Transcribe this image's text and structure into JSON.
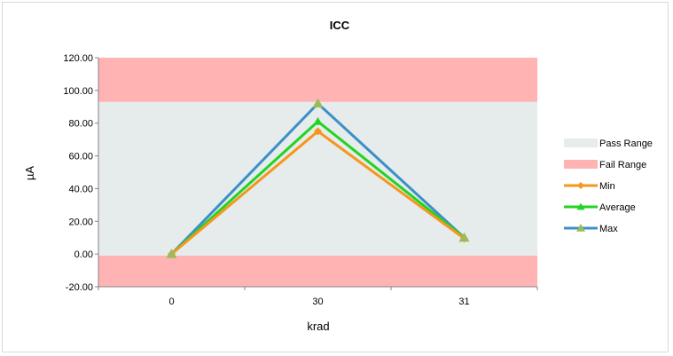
{
  "chart_data": {
    "type": "line",
    "title": "ICC",
    "xlabel": "krad",
    "ylabel": "µA",
    "categories": [
      "0",
      "30",
      "31"
    ],
    "ylim": [
      -20,
      120
    ],
    "yticks": [
      -20,
      0,
      20,
      40,
      60,
      80,
      100,
      120
    ],
    "ytick_labels": [
      "-20.00",
      "0.00",
      "20.00",
      "40.00",
      "60.00",
      "80.00",
      "100.00",
      "120.00"
    ],
    "bands": [
      {
        "name": "Pass Range",
        "from": -1,
        "to": 93,
        "color": "#e6ebeb"
      },
      {
        "name": "Fail Range",
        "color": "#ffb3b3",
        "regions": [
          [
            93,
            120
          ],
          [
            -20,
            -1
          ]
        ]
      }
    ],
    "series": [
      {
        "name": "Max",
        "values": [
          0,
          92,
          10
        ],
        "color": "#3c8fc8",
        "marker": "triangle"
      },
      {
        "name": "Average",
        "values": [
          0,
          81,
          10
        ],
        "color": "#22d422",
        "marker": "triangle"
      },
      {
        "name": "Min",
        "values": [
          0,
          75,
          9.5
        ],
        "color": "#f5961e",
        "marker": "diamond"
      }
    ],
    "legend": {
      "position": "right",
      "entries": [
        {
          "label": "Pass Range",
          "kind": "band",
          "color": "#e6ebeb"
        },
        {
          "label": "Fail Range",
          "kind": "band",
          "color": "#ffb3b3"
        },
        {
          "label": "Min",
          "kind": "line",
          "color": "#f5961e",
          "marker": "diamond"
        },
        {
          "label": "Average",
          "kind": "line",
          "color": "#22d422",
          "marker": "triangle"
        },
        {
          "label": "Max",
          "kind": "line",
          "color": "#3c8fc8",
          "marker": "triangle-olive"
        }
      ]
    },
    "grid": false
  }
}
